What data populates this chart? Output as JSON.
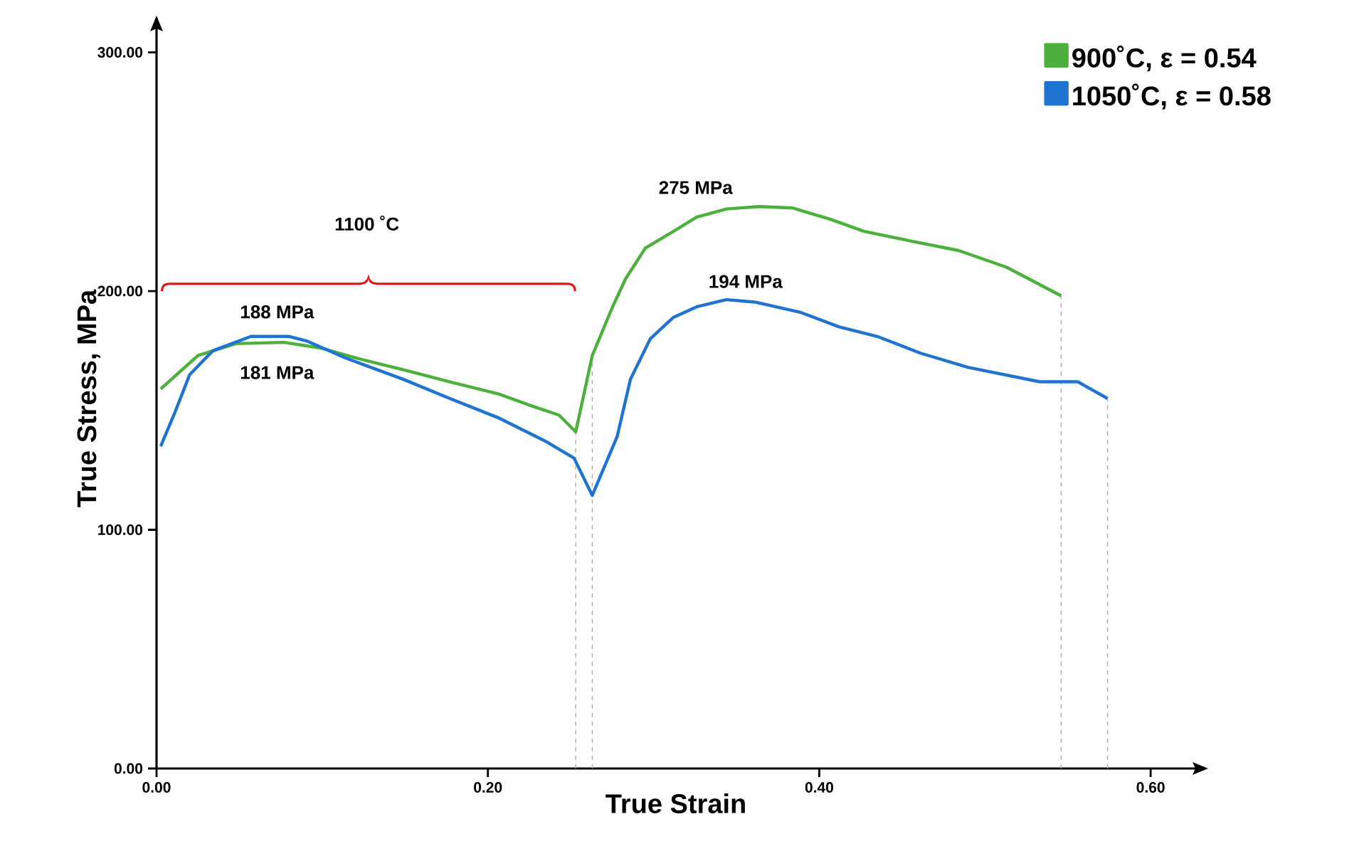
{
  "chart_data": {
    "type": "line",
    "xlabel": "True Strain",
    "ylabel": "True Stress, MPa",
    "xlim": [
      0,
      0.627
    ],
    "ylim": [
      0,
      310
    ],
    "xticks": [
      {
        "value": 0,
        "label": "0.00"
      },
      {
        "value": 0.2,
        "label": "0.20"
      },
      {
        "value": 0.4,
        "label": "0.40"
      },
      {
        "value": 0.6,
        "label": "0.60"
      }
    ],
    "yticks": [
      {
        "value": 0,
        "label": "0.00"
      },
      {
        "value": 100,
        "label": "100.00"
      },
      {
        "value": 200,
        "label": "200.00"
      },
      {
        "value": 300,
        "label": "300.00"
      }
    ],
    "grid": false,
    "legend": "top right",
    "marker": "none",
    "line_style": "solid",
    "series": [
      {
        "name": "900˚C, ε = 0.54",
        "color": "#4cb13c",
        "x": [
          0.0025,
          0.025,
          0.048,
          0.077,
          0.1,
          0.12,
          0.149,
          0.177,
          0.206,
          0.226,
          0.243,
          0.253,
          0.263,
          0.275,
          0.283,
          0.295,
          0.312,
          0.326,
          0.344,
          0.364,
          0.384,
          0.407,
          0.427,
          0.455,
          0.484,
          0.513,
          0.546
        ],
        "values": [
          159,
          173,
          178,
          178.5,
          176,
          172,
          167,
          162,
          157,
          152,
          148,
          141,
          173,
          193,
          205,
          218,
          225,
          231,
          234.4,
          235.4,
          234.8,
          230,
          225,
          221,
          217,
          210,
          198
        ]
      },
      {
        "name": "1050˚C, ε = 0.58",
        "color": "#1f74d2",
        "x": [
          0.0025,
          0.011,
          0.02,
          0.034,
          0.057,
          0.08,
          0.091,
          0.114,
          0.149,
          0.177,
          0.206,
          0.235,
          0.252,
          0.263,
          0.278,
          0.286,
          0.298,
          0.312,
          0.326,
          0.344,
          0.361,
          0.389,
          0.412,
          0.435,
          0.461,
          0.49,
          0.533,
          0.556,
          0.574
        ],
        "values": [
          135,
          149,
          165,
          175,
          181,
          181,
          179,
          172,
          163,
          155,
          147,
          137,
          130,
          114.4,
          139,
          163,
          180,
          189,
          193.4,
          196.4,
          195.4,
          191,
          185,
          181,
          174,
          168,
          162,
          162,
          155
        ]
      }
    ],
    "ref_lines": [
      {
        "axis": "x",
        "value": 0.253,
        "color": "#aaaaaa",
        "line_style": "dashed"
      },
      {
        "axis": "x",
        "value": 0.263,
        "color": "#aaaaaa",
        "line_style": "dashed"
      },
      {
        "axis": "x",
        "value": 0.546,
        "color": "#aaaaaa",
        "line_style": "dashed"
      },
      {
        "axis": "x",
        "value": 0.574,
        "color": "#aaaaaa",
        "line_style": "dashed"
      }
    ],
    "annotations": [
      "188 MPa",
      "181 MPa",
      "275 MPa",
      "194 MPa",
      "1100 ˚C"
    ]
  }
}
